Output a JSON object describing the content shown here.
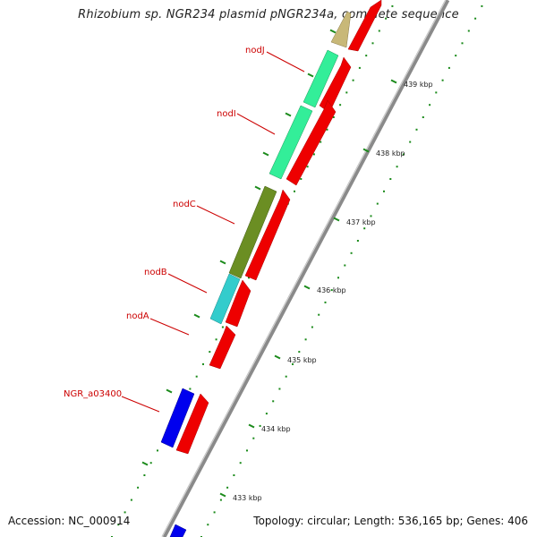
{
  "title": "Rhizobium sp. NGR234 plasmid pNGR234a, complete sequence",
  "footer": {
    "accession": "Accession: NC_000914",
    "summary": "Topology: circular; Length: 536,165 bp; Genes: 406"
  },
  "kbp_ticks": [
    "439 kbp",
    "438 kbp",
    "437 kbp",
    "436 kbp",
    "435 kbp",
    "434 kbp",
    "433 kbp"
  ],
  "gene_labels": [
    "nodJ",
    "nodI",
    "nodC",
    "nodB",
    "nodA",
    "NGR_a03400"
  ],
  "colors": {
    "backbone": "#8a8a8a",
    "red_features": "#ee0000",
    "nodJ": "#33ee99",
    "nodI": "#33ee99",
    "nodC": "#6b8e23",
    "nodB": "#33cccc",
    "NGR_a03400": "#0000ee",
    "top_feature": "#c8b878",
    "ticks": "#1a8a1a",
    "label_text": "#cc0000"
  }
}
